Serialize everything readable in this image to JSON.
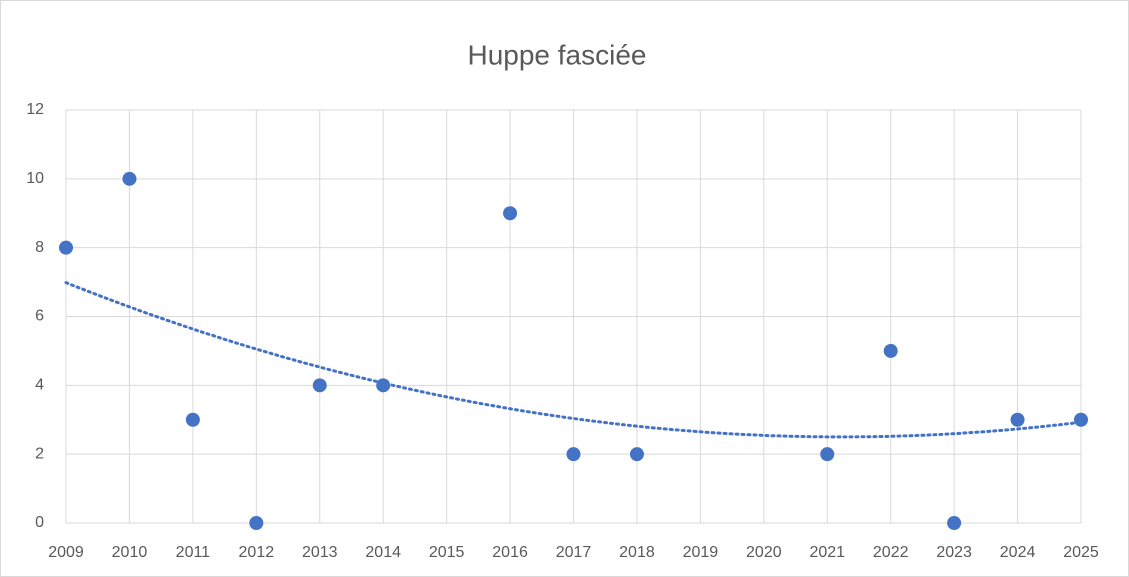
{
  "chart_data": {
    "type": "scatter",
    "title": "Huppe fasciée",
    "series": [
      {
        "color": "#4472c4",
        "x": [
          2009,
          2010,
          2011,
          2012,
          2013,
          2014,
          2016,
          2017,
          2018,
          2021,
          2022,
          2023,
          2024,
          2025
        ],
        "values": [
          8,
          10,
          3,
          0,
          4,
          4,
          9,
          2,
          2,
          2,
          5,
          0,
          3,
          3
        ]
      }
    ],
    "xlim": [
      2009,
      2025
    ],
    "xticks": [
      2009,
      2010,
      2011,
      2012,
      2013,
      2014,
      2015,
      2016,
      2017,
      2018,
      2019,
      2020,
      2021,
      2022,
      2023,
      2024,
      2025
    ],
    "ylim": [
      0,
      12
    ],
    "yticks": [
      0,
      2,
      4,
      6,
      8,
      10,
      12
    ],
    "grid": true,
    "trendline": {
      "type": "polynomial",
      "order": 2
    }
  }
}
